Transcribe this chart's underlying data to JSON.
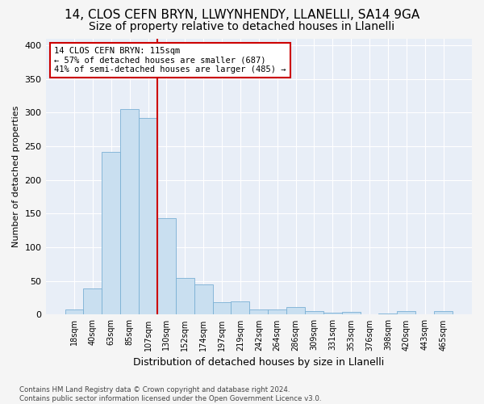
{
  "title1": "14, CLOS CEFN BRYN, LLWYNHENDY, LLANELLI, SA14 9GA",
  "title2": "Size of property relative to detached houses in Llanelli",
  "xlabel": "Distribution of detached houses by size in Llanelli",
  "ylabel": "Number of detached properties",
  "categories": [
    "18sqm",
    "40sqm",
    "63sqm",
    "85sqm",
    "107sqm",
    "130sqm",
    "152sqm",
    "174sqm",
    "197sqm",
    "219sqm",
    "242sqm",
    "264sqm",
    "286sqm",
    "309sqm",
    "331sqm",
    "353sqm",
    "376sqm",
    "398sqm",
    "420sqm",
    "443sqm",
    "465sqm"
  ],
  "bar_heights": [
    8,
    39,
    241,
    305,
    292,
    143,
    55,
    45,
    19,
    20,
    8,
    8,
    11,
    5,
    3,
    4,
    0,
    2,
    5,
    0,
    5
  ],
  "bar_color": "#c9dff0",
  "bar_edge_color": "#7ab0d4",
  "vline_x": 4.5,
  "vline_color": "#cc0000",
  "annotation_text": "14 CLOS CEFN BRYN: 115sqm\n← 57% of detached houses are smaller (687)\n41% of semi-detached houses are larger (485) →",
  "annotation_box_color": "#ffffff",
  "annotation_box_edge": "#cc0000",
  "footer": "Contains HM Land Registry data © Crown copyright and database right 2024.\nContains public sector information licensed under the Open Government Licence v3.0.",
  "ylim": [
    0,
    410
  ],
  "yticks": [
    0,
    50,
    100,
    150,
    200,
    250,
    300,
    350,
    400
  ],
  "background_color": "#e8eef7",
  "grid_color": "#ffffff",
  "title1_fontsize": 11,
  "title2_fontsize": 10,
  "xlabel_fontsize": 9,
  "ylabel_fontsize": 8
}
